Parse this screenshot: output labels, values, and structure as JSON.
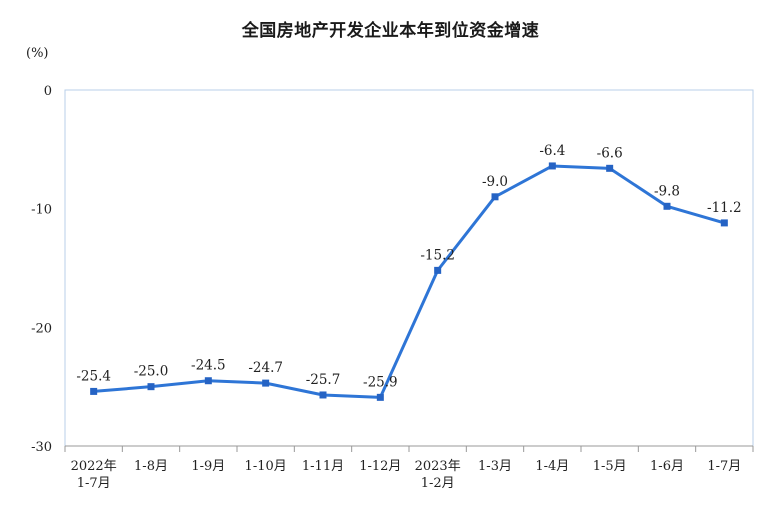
{
  "chart_data": {
    "type": "line",
    "title": "全国房地产开发企业本年到位资金增速",
    "y_unit": "(%)",
    "categories": [
      [
        "2022年",
        "1-7月"
      ],
      [
        "1-8月"
      ],
      [
        "1-9月"
      ],
      [
        "1-10月"
      ],
      [
        "1-11月"
      ],
      [
        "1-12月"
      ],
      [
        "2023年",
        "1-2月"
      ],
      [
        "1-3月"
      ],
      [
        "1-4月"
      ],
      [
        "1-5月"
      ],
      [
        "1-6月"
      ],
      [
        "1-7月"
      ]
    ],
    "series": [
      {
        "values": [
          -25.4,
          -25.0,
          -24.5,
          -24.7,
          -25.7,
          -25.9,
          -15.2,
          -9.0,
          -6.4,
          -6.6,
          -9.8,
          -11.2
        ],
        "labels": [
          "-25.4",
          "-25.0",
          "-24.5",
          "-24.7",
          "-25.7",
          "-25.9",
          "-15.2",
          "-9.0",
          "-6.4",
          "-6.6",
          "-9.8",
          "-11.2"
        ]
      }
    ],
    "ylim": [
      -30,
      0
    ],
    "yticks": [
      0,
      -10,
      -20,
      -30
    ],
    "ytick_labels": [
      "0",
      "-10",
      "-20",
      "-30"
    ],
    "grid": false,
    "colors": {
      "line": "#2e75d6",
      "marker": "#2563c4",
      "frame": "#b8cfe8",
      "axis": "#999999"
    }
  }
}
